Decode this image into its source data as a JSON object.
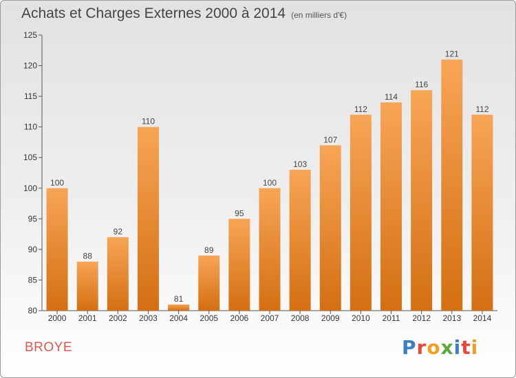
{
  "header": {
    "title": "Achats et Charges Externes 2000 à 2014",
    "subtitle": "(en milliers d'€)"
  },
  "footer": {
    "place": "BROYE",
    "logo": "Proxiti",
    "logo_colors": [
      "#3d7fc4",
      "#e8473c",
      "#f0a020",
      "#5aaa3c",
      "#3d7fc4",
      "#e8473c",
      "#f0a020"
    ]
  },
  "chart_data": {
    "type": "bar",
    "title": "Achats et Charges Externes 2000 à 2014",
    "subtitle": "(en milliers d'€)",
    "xlabel": "",
    "ylabel": "",
    "categories": [
      "2000",
      "2001",
      "2002",
      "2003",
      "2004",
      "2005",
      "2006",
      "2007",
      "2008",
      "2009",
      "2010",
      "2011",
      "2012",
      "2013",
      "2014"
    ],
    "values": [
      100,
      88,
      92,
      110,
      81,
      89,
      95,
      100,
      103,
      107,
      112,
      114,
      116,
      121,
      112
    ],
    "ylim": [
      80,
      125
    ],
    "yticks": [
      80,
      85,
      90,
      95,
      100,
      105,
      110,
      115,
      120,
      125
    ],
    "grid": false,
    "bar_color_top": "#f7a556",
    "bar_color_bottom": "#d46f12"
  }
}
